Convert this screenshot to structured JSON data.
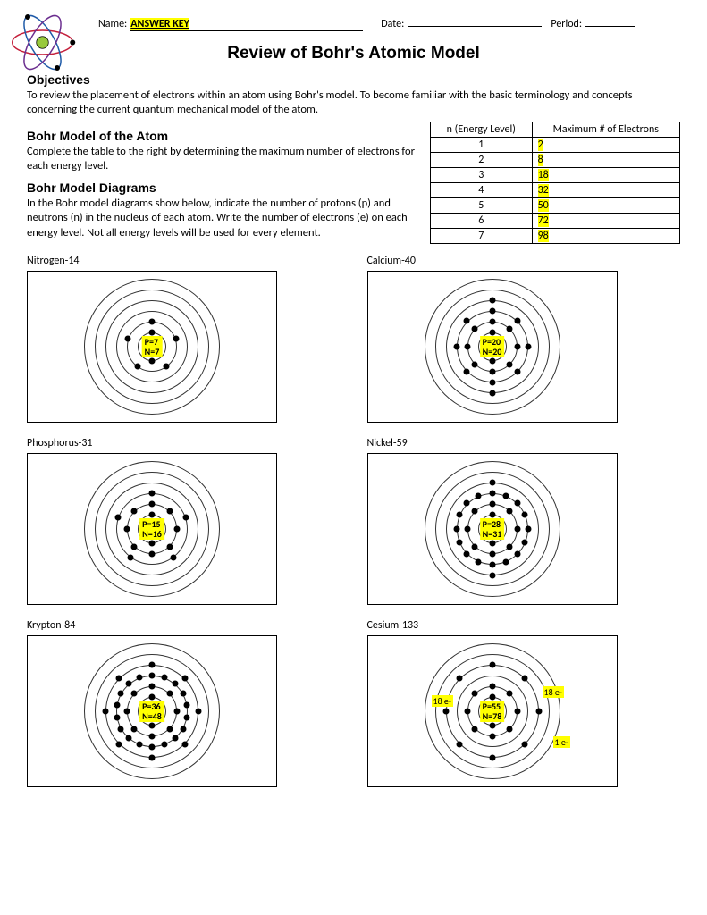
{
  "header": {
    "name_label": "Name:",
    "name_value": "ANSWER KEY",
    "date_label": "Date:",
    "period_label": "Period:"
  },
  "title": "Review of Bohr's Atomic Model",
  "objectives_heading": "Objectives",
  "objectives_text": "To review the placement of electrons within an atom using Bohr's model.  To become familiar with the basic terminology and concepts concerning the current quantum mechanical model of the atom.",
  "bohr_model_heading": "Bohr Model of the Atom",
  "bohr_model_text": "Complete the table to the right by determining the maximum number of electrons for each energy level.",
  "bohr_diagrams_heading": "Bohr Model Diagrams",
  "bohr_diagrams_text": "In the Bohr model diagrams show below, indicate the number of protons (p) and neutrons (n) in the nucleus of each atom. Write the number of electrons (e) on each energy level.  Not all energy levels will be used for every element.",
  "energy_table": {
    "col1": "n (Energy Level)",
    "col2": "Maximum # of Electrons",
    "rows": [
      {
        "n": "1",
        "max": "2"
      },
      {
        "n": "2",
        "max": "8"
      },
      {
        "n": "3",
        "max": "18"
      },
      {
        "n": "4",
        "max": "32"
      },
      {
        "n": "5",
        "max": "50"
      },
      {
        "n": "6",
        "max": "72"
      },
      {
        "n": "7",
        "max": "98"
      }
    ],
    "highlight_color": "#ffff00"
  },
  "atom_icon": {
    "nucleus_color": "#98c93c",
    "orbit_colors": [
      "#c41e3a",
      "#1e5aa8",
      "#6b2e8f"
    ],
    "electron_color": "#000000"
  },
  "diagrams": [
    {
      "label": "Nitrogen-14",
      "nucleus": "P=7\nN=7",
      "shells_shown": 6,
      "electrons_per_shell": [
        2,
        5
      ],
      "shell_labels": []
    },
    {
      "label": "Calcium-40",
      "nucleus": "P=20\nN=20",
      "shells_shown": 6,
      "electrons_per_shell": [
        2,
        8,
        8,
        2
      ],
      "shell_labels": []
    },
    {
      "label": "Phosphorus-31",
      "nucleus": "P=15\nN=16",
      "shells_shown": 6,
      "electrons_per_shell": [
        2,
        8,
        5
      ],
      "shell_labels": []
    },
    {
      "label": "Nickel-59",
      "nucleus": "P=28\nN=31",
      "shells_shown": 6,
      "electrons_per_shell": [
        2,
        8,
        16,
        2
      ],
      "shell_labels": []
    },
    {
      "label": "Krypton-84",
      "nucleus": "P=36\nN=48",
      "shells_shown": 6,
      "electrons_per_shell": [
        2,
        8,
        18,
        8
      ],
      "shell_labels": []
    },
    {
      "label": "Cesium-133",
      "nucleus": "P=55\nN=78",
      "shells_shown": 6,
      "electrons_per_shell": [
        2,
        8,
        0,
        8,
        0,
        0
      ],
      "shell_labels": [
        {
          "shell": 3,
          "text": "18 e-",
          "pos": "left"
        },
        {
          "shell": 5,
          "text": "18 e-",
          "pos": "right-top"
        },
        {
          "shell": 6,
          "text": "1 e-",
          "pos": "right-bottom"
        }
      ]
    }
  ],
  "shell_radii": [
    16,
    28,
    40,
    52,
    64,
    76
  ],
  "colors": {
    "highlight": "#ffff00",
    "border": "#000000",
    "electron": "#000000"
  }
}
